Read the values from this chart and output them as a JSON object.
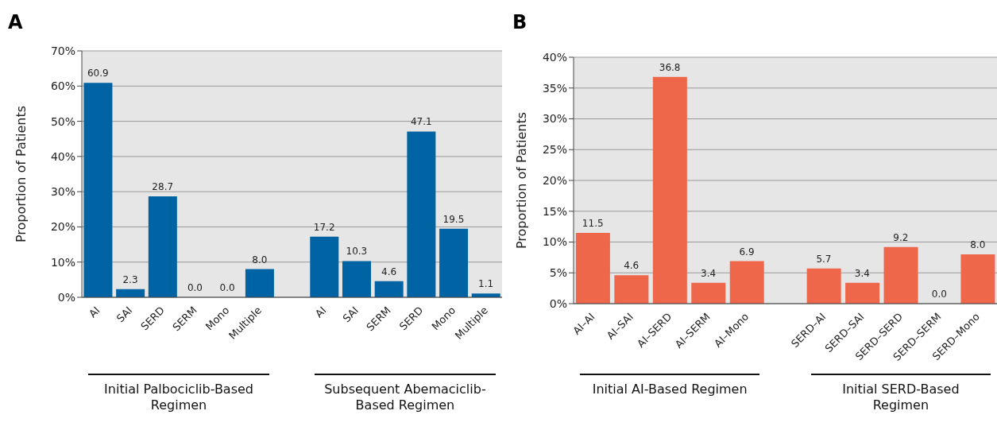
{
  "chart_data": [
    {
      "type": "bar",
      "title": "A",
      "ylabel": "Proportion of Patients",
      "categories": [
        "AI",
        "SAI",
        "SERD",
        "SERM",
        "Mono",
        "Multiple",
        null,
        "AI",
        "SAI",
        "SERM",
        "SERD",
        "Mono",
        "Multiple"
      ],
      "values": [
        60.9,
        2.3,
        28.7,
        0,
        0,
        8.0,
        null,
        17.2,
        10.3,
        4.6,
        47.1,
        19.5,
        1.1
      ],
      "value_labels": [
        "60.9",
        "2.3",
        "28.7",
        "0.0",
        "0.0",
        "8.0",
        null,
        "17.2",
        "10.3",
        "4.6",
        "47.1",
        "19.5",
        "1.1"
      ],
      "color": "#0063a3",
      "ylim": [
        0,
        70
      ],
      "yticks": [
        {
          "value": 0,
          "label": "0%"
        },
        {
          "value": 10,
          "label": "10%"
        },
        {
          "value": 20,
          "label": "20%"
        },
        {
          "value": 30,
          "label": "30%"
        },
        {
          "value": 40,
          "label": "40%"
        },
        {
          "value": 50,
          "label": "50%"
        },
        {
          "value": 60,
          "label": "60%"
        },
        {
          "value": 70,
          "label": "70%"
        }
      ],
      "grid": "y",
      "annotations": [
        "Initial Palbociclib-Based Regimen",
        "Subsequent Abemaciclib-Based Regimen"
      ]
    },
    {
      "type": "bar",
      "title": "B",
      "ylabel": "Proportion of Patients",
      "categories": [
        "AI–AI",
        "AI–SAI",
        "AI–SERD",
        "AI–SERM",
        "AI–Mono",
        null,
        "SERD–AI",
        "SERD–SAI",
        "SERD–SERD",
        "SERD–SERM",
        "SERD–Mono"
      ],
      "values": [
        11.5,
        4.6,
        36.8,
        3.4,
        6.9,
        null,
        5.7,
        3.4,
        9.2,
        0,
        8.0
      ],
      "value_labels": [
        "11.5",
        "4.6",
        "36.8",
        "3.4",
        "6.9",
        null,
        "5.7",
        "3.4",
        "9.2",
        "0.0",
        "8.0"
      ],
      "color": "#ee674b",
      "ylim": [
        0,
        40
      ],
      "yticks": [
        {
          "value": 0,
          "label": "0%"
        },
        {
          "value": 5,
          "label": "5%"
        },
        {
          "value": 10,
          "label": "10%"
        },
        {
          "value": 15,
          "label": "15%"
        },
        {
          "value": 20,
          "label": "20%"
        },
        {
          "value": 25,
          "label": "25%"
        },
        {
          "value": 30,
          "label": "30%"
        },
        {
          "value": 35,
          "label": "35%"
        },
        {
          "value": 40,
          "label": "40%"
        }
      ],
      "grid": "y",
      "annotations": [
        "Initial AI-Based Regimen",
        "Initial SERD-Based Regimen"
      ]
    }
  ]
}
